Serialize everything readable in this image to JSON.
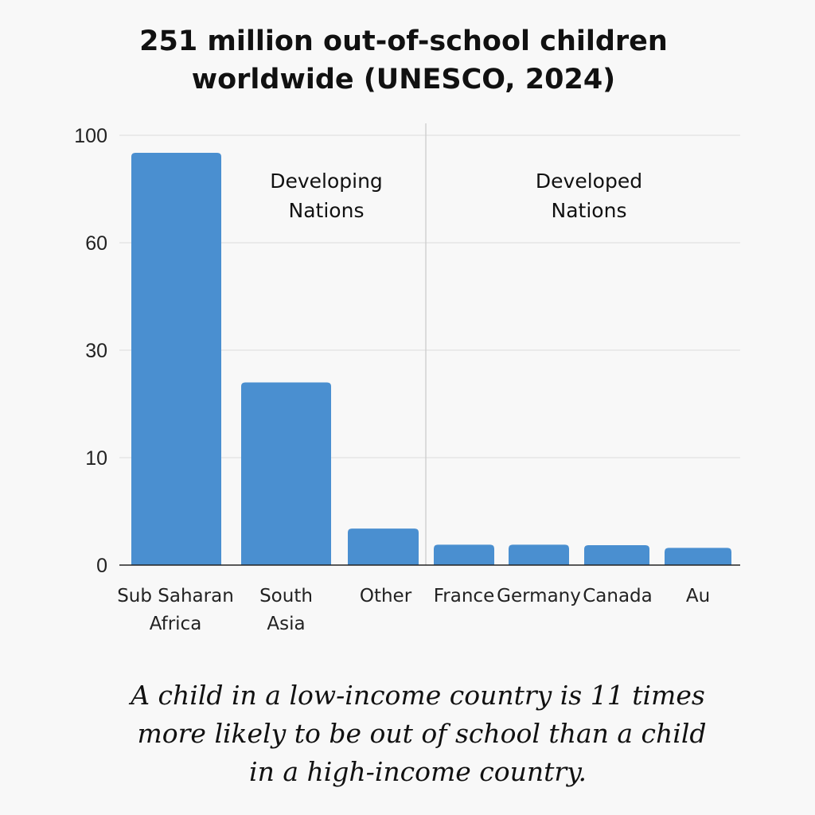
{
  "chart_data": {
    "type": "bar",
    "title": [
      "251 million out-of-school children",
      "worldwide (UNESCO, 2024)"
    ],
    "categories": [
      [
        "Sub Saharan",
        "Africa"
      ],
      [
        "South",
        "Asia"
      ],
      [
        "Other"
      ],
      [
        "France"
      ],
      [
        "Germany"
      ],
      [
        "Canada"
      ],
      [
        "Au"
      ]
    ],
    "values": [
      93.5,
      24,
      3.4,
      1.9,
      1.9,
      1.85,
      1.6
    ],
    "yticks": [
      0,
      10,
      30,
      60,
      100
    ],
    "ylim": [
      0,
      100
    ],
    "y_scale": "non-linear (ticks equally spaced)",
    "grid": true,
    "bar_color": "#4a8fd0",
    "groups": [
      {
        "label": [
          "Developing",
          "Nations"
        ]
      },
      {
        "label": [
          "Developed",
          "Nations"
        ]
      }
    ]
  },
  "footnote": [
    "A child in a low-income country is 11 times",
    "more likely to be out of school than a child",
    "in a high-income country."
  ]
}
